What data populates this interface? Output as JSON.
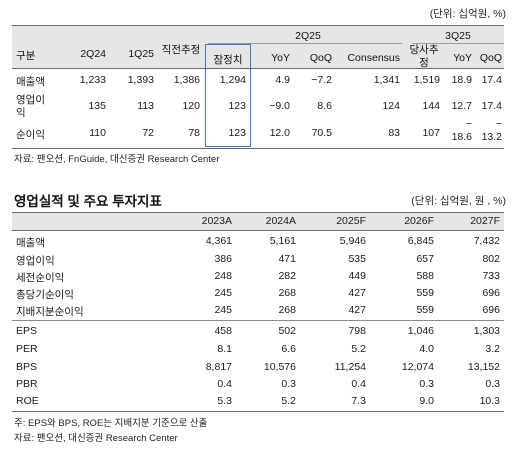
{
  "table1": {
    "unit": "(단위: 십억원, %)",
    "col_gubun": "구분",
    "group_2q25": "2Q25",
    "group_3q25": "3Q25",
    "headers": {
      "q2q24": "2Q24",
      "q1q25": "1Q25",
      "prev_est": "직전추정",
      "prelim": "잠정치",
      "yoy": "YoY",
      "qoq": "QoQ",
      "consensus": "Consensus",
      "company_est": "당사추정",
      "yoy3": "YoY",
      "qoq3": "QoQ"
    },
    "rows": [
      {
        "label": "매출액",
        "q2q24": "1,233",
        "q1q25": "1,393",
        "prev_est": "1,386",
        "prelim": "1,294",
        "yoy": "4.9",
        "qoq": "−7.2",
        "consensus": "1,341",
        "company_est": "1,519",
        "yoy3": "18.9",
        "qoq3": "17.4"
      },
      {
        "label": "영업이익",
        "q2q24": "135",
        "q1q25": "113",
        "prev_est": "120",
        "prelim": "123",
        "yoy": "−9.0",
        "qoq": "8.6",
        "consensus": "124",
        "company_est": "144",
        "yoy3": "12.7",
        "qoq3": "17.4"
      },
      {
        "label": "순이익",
        "q2q24": "110",
        "q1q25": "72",
        "prev_est": "78",
        "prelim": "123",
        "yoy": "12.0",
        "qoq": "70.5",
        "consensus": "83",
        "company_est": "107",
        "yoy3": "18.6",
        "qoq3": "13.2",
        "yoy3_prefix": "−",
        "qoq3_prefix": "−"
      }
    ],
    "source": "자료: 팬오션, FnGuide, 대신증권 Research Center"
  },
  "table2": {
    "title": "영업실적 및 주요 투자지표",
    "unit": "(단위: 십억원, 원 , %)",
    "years": [
      "2023A",
      "2024A",
      "2025F",
      "2026F",
      "2027F"
    ],
    "rows": [
      {
        "label": "매출액",
        "values": [
          "4,361",
          "5,161",
          "5,946",
          "6,845",
          "7,432"
        ]
      },
      {
        "label": "영업이익",
        "values": [
          "386",
          "471",
          "535",
          "657",
          "802"
        ]
      },
      {
        "label": "세전순이익",
        "values": [
          "248",
          "282",
          "449",
          "588",
          "733"
        ]
      },
      {
        "label": "총당기순이익",
        "values": [
          "245",
          "268",
          "427",
          "559",
          "696"
        ]
      },
      {
        "label": "지배지분순이익",
        "values": [
          "245",
          "268",
          "427",
          "559",
          "696"
        ]
      },
      {
        "label": "EPS",
        "values": [
          "458",
          "502",
          "798",
          "1,046",
          "1,303"
        ]
      },
      {
        "label": "PER",
        "values": [
          "8.1",
          "6.6",
          "5.2",
          "4.0",
          "3.2"
        ]
      },
      {
        "label": "BPS",
        "values": [
          "8,817",
          "10,576",
          "11,254",
          "12,074",
          "13,152"
        ]
      },
      {
        "label": "PBR",
        "values": [
          "0.4",
          "0.3",
          "0.4",
          "0.3",
          "0.3"
        ]
      },
      {
        "label": "ROE",
        "values": [
          "5.3",
          "5.2",
          "7.3",
          "9.0",
          "10.3"
        ]
      }
    ],
    "note": "주: EPS와 BPS, ROE는 지배지분 기준으로 산출",
    "source": "자료: 팬오션, 대신증권 Research Center"
  }
}
